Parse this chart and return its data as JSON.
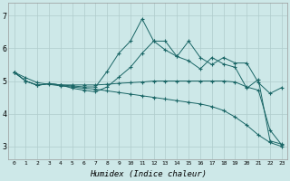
{
  "xlabel": "Humidex (Indice chaleur)",
  "xlim": [
    -0.5,
    23.5
  ],
  "ylim": [
    2.6,
    7.4
  ],
  "background_color": "#cde8e8",
  "grid_color": "#b0cccc",
  "line_color": "#1a6666",
  "xtick_labels": [
    "0",
    "1",
    "2",
    "3",
    "4",
    "5",
    "6",
    "7",
    "8",
    "9",
    "10",
    "11",
    "12",
    "13",
    "14",
    "15",
    "16",
    "17",
    "18",
    "19",
    "20",
    "21",
    "22",
    "23"
  ],
  "ytick_labels": [
    "3",
    "4",
    "5",
    "6",
    "7"
  ],
  "ytick_vals": [
    3,
    4,
    5,
    6,
    7
  ],
  "series": {
    "line1_x": [
      0,
      1,
      2,
      3,
      4,
      5,
      6,
      7,
      8,
      9,
      10,
      11,
      12,
      13,
      14,
      15,
      16,
      17,
      18,
      19,
      20,
      21,
      22,
      23
    ],
    "line1_y": [
      5.27,
      5.0,
      4.87,
      4.92,
      4.88,
      4.85,
      4.82,
      4.82,
      5.3,
      5.85,
      6.22,
      6.9,
      6.22,
      6.22,
      5.75,
      6.22,
      5.72,
      5.5,
      5.72,
      5.55,
      5.55,
      4.95,
      4.62,
      4.8
    ],
    "line2_x": [
      0,
      1,
      2,
      3,
      4,
      5,
      6,
      7,
      8,
      9,
      10,
      11,
      12,
      13,
      14,
      15,
      16,
      17,
      18,
      19,
      20,
      21,
      22,
      23
    ],
    "line2_y": [
      5.27,
      5.0,
      4.87,
      4.92,
      4.88,
      4.78,
      4.72,
      4.67,
      4.82,
      5.12,
      5.42,
      5.85,
      6.22,
      5.95,
      5.75,
      5.62,
      5.37,
      5.72,
      5.52,
      5.42,
      4.78,
      5.05,
      3.17,
      3.07
    ],
    "line3_x": [
      0,
      1,
      2,
      3,
      4,
      5,
      6,
      7,
      8,
      9,
      10,
      11,
      12,
      13,
      14,
      15,
      16,
      17,
      18,
      19,
      20,
      21,
      22,
      23
    ],
    "line3_y": [
      5.27,
      5.0,
      4.87,
      4.92,
      4.88,
      4.88,
      4.88,
      4.88,
      4.9,
      4.93,
      4.95,
      4.97,
      5.0,
      5.0,
      5.0,
      5.0,
      5.0,
      5.0,
      5.0,
      4.97,
      4.82,
      4.72,
      3.5,
      3.05
    ],
    "line4_x": [
      0,
      1,
      2,
      3,
      4,
      5,
      6,
      7,
      8,
      9,
      10,
      11,
      12,
      13,
      14,
      15,
      16,
      17,
      18,
      19,
      20,
      21,
      22,
      23
    ],
    "line4_y": [
      5.27,
      5.1,
      4.95,
      4.9,
      4.85,
      4.82,
      4.78,
      4.75,
      4.7,
      4.65,
      4.6,
      4.55,
      4.5,
      4.45,
      4.4,
      4.35,
      4.3,
      4.22,
      4.1,
      3.9,
      3.65,
      3.35,
      3.12,
      3.0
    ]
  }
}
